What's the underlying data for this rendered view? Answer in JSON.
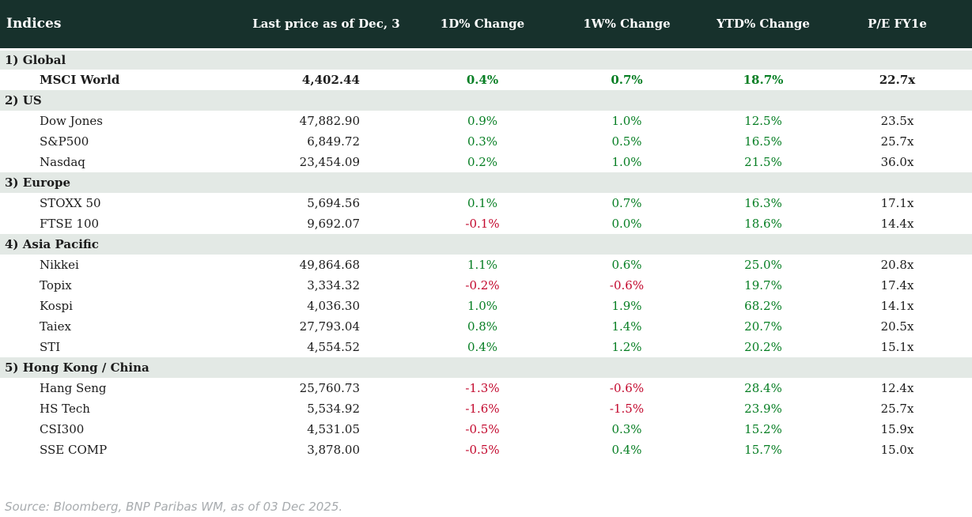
{
  "table": {
    "title": "Indices",
    "columns": [
      "Last price as of Dec, 3",
      "1D% Change",
      "1W% Change",
      "YTD% Change",
      "P/E FY1e"
    ],
    "sections": [
      {
        "label": "1) Global",
        "rows": [
          {
            "name": "MSCI World",
            "last_price": "4,402.44",
            "chg_1d": "0.4%",
            "chg_1w": "0.7%",
            "ytd": "18.7%",
            "pe": "22.7x",
            "bold": true
          }
        ]
      },
      {
        "label": "2) US",
        "rows": [
          {
            "name": "Dow Jones",
            "last_price": "47,882.90",
            "chg_1d": "0.9%",
            "chg_1w": "1.0%",
            "ytd": "12.5%",
            "pe": "23.5x"
          },
          {
            "name": "S&P500",
            "last_price": "6,849.72",
            "chg_1d": "0.3%",
            "chg_1w": "0.5%",
            "ytd": "16.5%",
            "pe": "25.7x"
          },
          {
            "name": "Nasdaq",
            "last_price": "23,454.09",
            "chg_1d": "0.2%",
            "chg_1w": "1.0%",
            "ytd": "21.5%",
            "pe": "36.0x"
          }
        ]
      },
      {
        "label": "3) Europe",
        "rows": [
          {
            "name": "STOXX 50",
            "last_price": "5,694.56",
            "chg_1d": "0.1%",
            "chg_1w": "0.7%",
            "ytd": "16.3%",
            "pe": "17.1x"
          },
          {
            "name": "FTSE 100",
            "last_price": "9,692.07",
            "chg_1d": "-0.1%",
            "chg_1w": "0.0%",
            "ytd": "18.6%",
            "pe": "14.4x"
          }
        ]
      },
      {
        "label": "4) Asia Pacific",
        "rows": [
          {
            "name": "Nikkei",
            "last_price": "49,864.68",
            "chg_1d": "1.1%",
            "chg_1w": "0.6%",
            "ytd": "25.0%",
            "pe": "20.8x"
          },
          {
            "name": "Topix",
            "last_price": "3,334.32",
            "chg_1d": "-0.2%",
            "chg_1w": "-0.6%",
            "ytd": "19.7%",
            "pe": "17.4x"
          },
          {
            "name": "Kospi",
            "last_price": "4,036.30",
            "chg_1d": "1.0%",
            "chg_1w": "1.9%",
            "ytd": "68.2%",
            "pe": "14.1x"
          },
          {
            "name": "Taiex",
            "last_price": "27,793.04",
            "chg_1d": "0.8%",
            "chg_1w": "1.4%",
            "ytd": "20.7%",
            "pe": "20.5x"
          },
          {
            "name": "STI",
            "last_price": "4,554.52",
            "chg_1d": "0.4%",
            "chg_1w": "1.2%",
            "ytd": "20.2%",
            "pe": "15.1x"
          }
        ]
      },
      {
        "label": "5) Hong Kong / China",
        "rows": [
          {
            "name": "Hang Seng",
            "last_price": "25,760.73",
            "chg_1d": "-1.3%",
            "chg_1w": "-0.6%",
            "ytd": "28.4%",
            "pe": "12.4x"
          },
          {
            "name": "HS Tech",
            "last_price": "5,534.92",
            "chg_1d": "-1.6%",
            "chg_1w": "-1.5%",
            "ytd": "23.9%",
            "pe": "25.7x"
          },
          {
            "name": "CSI300",
            "last_price": "4,531.05",
            "chg_1d": "-0.5%",
            "chg_1w": "0.3%",
            "ytd": "15.2%",
            "pe": "15.9x"
          },
          {
            "name": "SSE COMP",
            "last_price": "3,878.00",
            "chg_1d": "-0.5%",
            "chg_1w": "0.4%",
            "ytd": "15.7%",
            "pe": "15.0x"
          }
        ]
      }
    ]
  },
  "footer": {
    "source": "Source: Bloomberg, BNP Paribas WM, as of 03 Dec 2025."
  },
  "colors": {
    "header_bg": "#17312c",
    "section_bg": "#e3e9e5",
    "positive": "#067e23",
    "negative": "#c3092e",
    "text": "#1c1c1c",
    "footer_text": "#a7abae"
  }
}
